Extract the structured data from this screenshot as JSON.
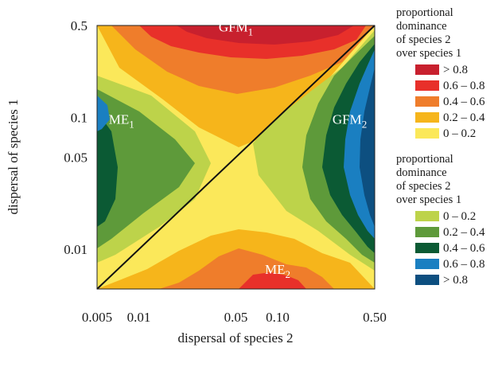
{
  "chart_data": {
    "type": "heatmap",
    "title": "",
    "xlabel": "dispersal of species 2",
    "ylabel": "dispersal of species 1",
    "x_scale": "log",
    "y_scale": "log",
    "xlim": [
      0.005,
      0.5
    ],
    "ylim": [
      0.005,
      0.5
    ],
    "x_ticks": [
      {
        "value": 0.005,
        "label": "0.005"
      },
      {
        "value": 0.01,
        "label": "0.01"
      },
      {
        "value": 0.05,
        "label": "0.05"
      },
      {
        "value": 0.1,
        "label": "0.10"
      },
      {
        "value": 0.5,
        "label": "0.50"
      }
    ],
    "y_ticks": [
      {
        "value": 0.01,
        "label": "0.01"
      },
      {
        "value": 0.05,
        "label": "0.05"
      },
      {
        "value": 0.1,
        "label": "0.1"
      },
      {
        "value": 0.5,
        "label": "0.5"
      }
    ],
    "diagonal_line": true,
    "region_labels": [
      {
        "base": "GFM",
        "sub": "1",
        "x": 0.05,
        "y": 0.45
      },
      {
        "base": "ME",
        "sub": "1",
        "x": 0.0075,
        "y": 0.09
      },
      {
        "base": "GFM",
        "sub": "2",
        "x": 0.33,
        "y": 0.09
      },
      {
        "base": "ME",
        "sub": "2",
        "x": 0.1,
        "y": 0.0065
      }
    ],
    "legend": [
      {
        "title": [
          "proportional",
          "dominance",
          "of species 2",
          "over species 1"
        ],
        "entries": [
          {
            "label": "> 0.8",
            "color": "#c8202e"
          },
          {
            "label": "0.6 – 0.8",
            "color": "#e8302a"
          },
          {
            "label": "0.4 – 0.6",
            "color": "#ef7d2b"
          },
          {
            "label": "0.2 – 0.4",
            "color": "#f6b51b"
          },
          {
            "label": "0 – 0.2",
            "color": "#fbe85a"
          }
        ]
      },
      {
        "title": [
          "proportional",
          "dominance",
          "of species 2",
          "over species 1"
        ],
        "entries": [
          {
            "label": "0 – 0.2",
            "color": "#bdd34a"
          },
          {
            "label": "0.2 – 0.4",
            "color": "#5e9a3a"
          },
          {
            "label": "0.4 – 0.6",
            "color": "#0b5a34"
          },
          {
            "label": "0.6 – 0.8",
            "color": "#1a7fc1"
          },
          {
            "label": "> 0.8",
            "color": "#0d4f80"
          }
        ]
      }
    ]
  }
}
